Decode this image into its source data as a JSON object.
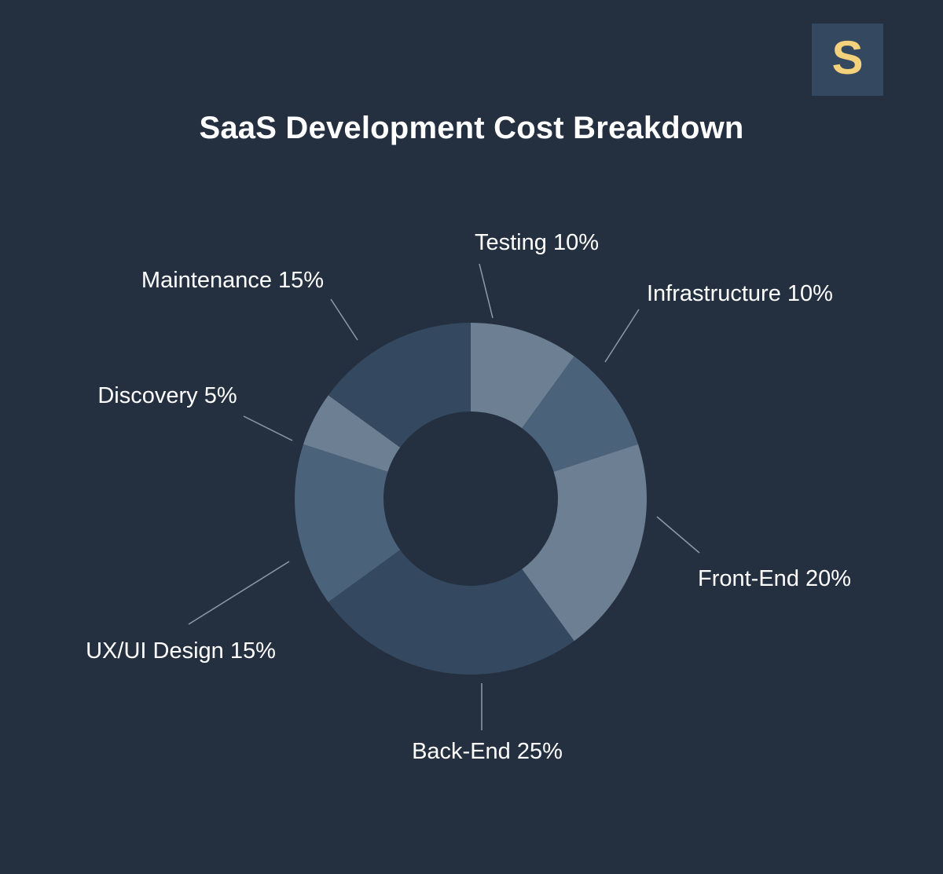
{
  "logo": {
    "letter": "S",
    "background": "#34495f",
    "color": "#f4d27b"
  },
  "chart_data": {
    "type": "pie",
    "donut": true,
    "title": "SaaS Development Cost Breakdown",
    "slices": [
      {
        "name": "Testing",
        "value": 10,
        "label": "Testing 10%",
        "color": "#6d7f92"
      },
      {
        "name": "Infrastructure",
        "value": 10,
        "label": "Infrastructure 10%",
        "color": "#4b627b"
      },
      {
        "name": "Front-End",
        "value": 20,
        "label": "Front-End 20%",
        "color": "#6d7f92"
      },
      {
        "name": "Back-End",
        "value": 25,
        "label": "Back-End 25%",
        "color": "#34495f"
      },
      {
        "name": "UX/UI Design",
        "value": 15,
        "label": "UX/UI Design 15%",
        "color": "#4b627b"
      },
      {
        "name": "Discovery",
        "value": 5,
        "label": "Discovery 5%",
        "color": "#6d7f92"
      },
      {
        "name": "Maintenance",
        "value": 15,
        "label": "Maintenance 15%",
        "color": "#34495f"
      }
    ],
    "legend": "none"
  }
}
